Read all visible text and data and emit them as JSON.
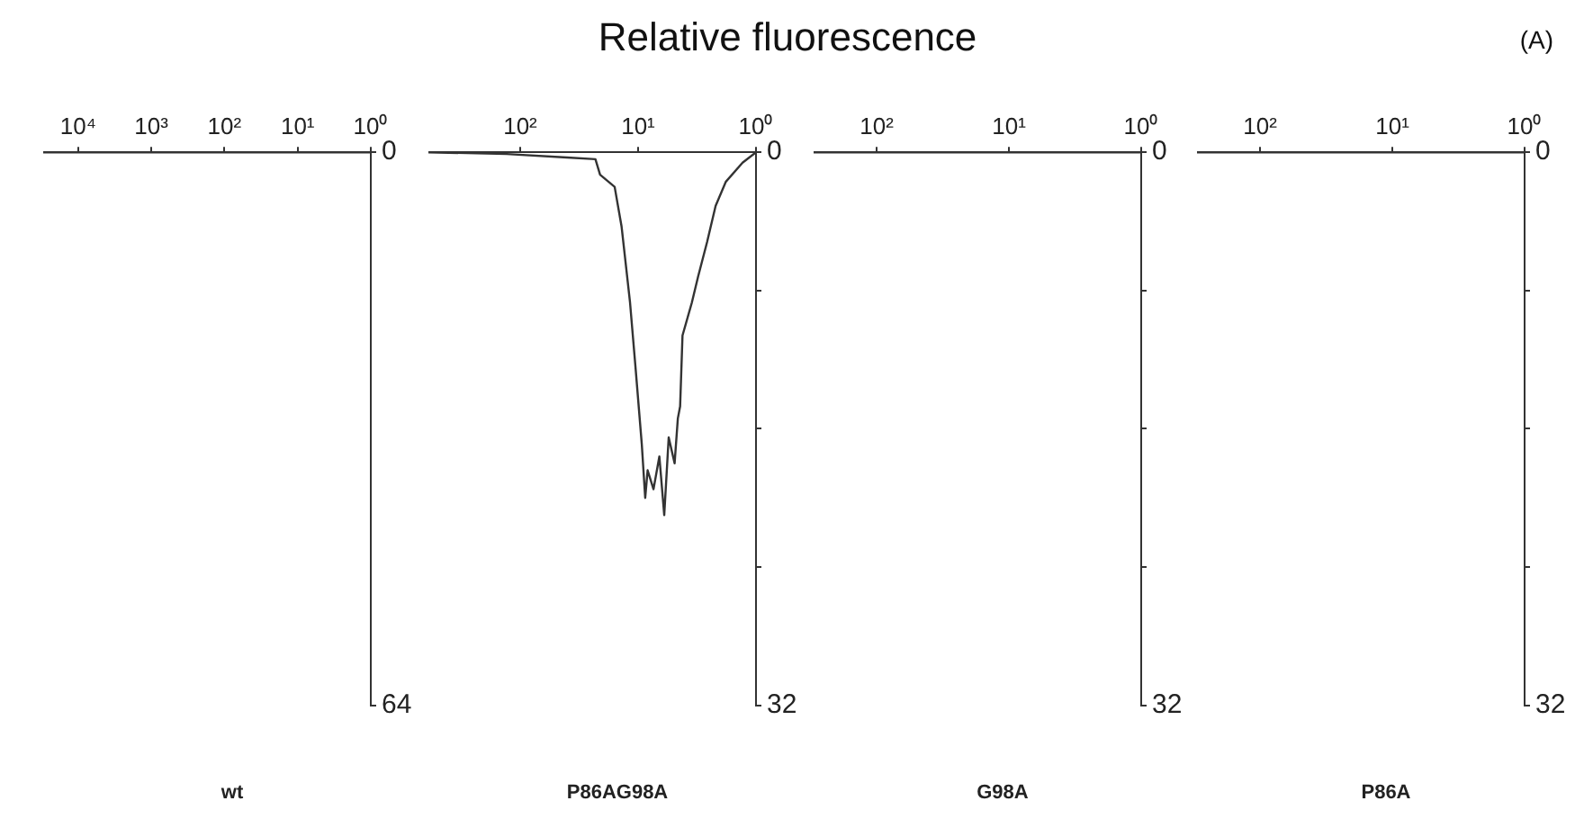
{
  "chart_data": [
    {
      "type": "line",
      "title": "P86A",
      "x": [
        1,
        3,
        10,
        30,
        100,
        300
      ],
      "values": [
        0,
        0,
        0,
        0,
        0,
        0
      ],
      "color": "#333333",
      "xlim": [
        300,
        1
      ],
      "xticks": [
        {
          "value": 1,
          "label": "10⁰"
        },
        {
          "value": 10,
          "label": "10¹"
        },
        {
          "value": 100,
          "label": "10²"
        }
      ],
      "ylim": [
        32,
        0
      ],
      "yticks": [
        0,
        {
          "value": 8,
          "label": null
        },
        {
          "value": 16,
          "label": null
        },
        {
          "value": 24,
          "label": null
        },
        32
      ],
      "log": "x",
      "grid": false,
      "legend": false,
      "marker": "none",
      "annotations": [
        "(A)",
        "Relative fluorescence"
      ]
    },
    {
      "type": "line",
      "title": "G98A",
      "x": [
        1,
        3,
        10,
        30,
        100,
        300
      ],
      "values": [
        0,
        0,
        0,
        0,
        0,
        0
      ],
      "color": "#333333",
      "xlim": [
        300,
        1
      ],
      "xticks": [
        {
          "value": 1,
          "label": "10⁰"
        },
        {
          "value": 10,
          "label": "10¹"
        },
        {
          "value": 100,
          "label": "10²"
        }
      ],
      "ylim": [
        32,
        0
      ],
      "yticks": [
        0,
        {
          "value": 8,
          "label": null
        },
        {
          "value": 16,
          "label": null
        },
        {
          "value": 24,
          "label": null
        },
        32
      ],
      "log": "x",
      "grid": false,
      "legend": false,
      "marker": "none"
    },
    {
      "type": "line",
      "title": "P86AG98A",
      "x": [
        1,
        1.3,
        1.8,
        2.2,
        2.6,
        3.1,
        3.5,
        4.2,
        4.4,
        4.6,
        4.9,
        5.5,
        6,
        6.6,
        7.4,
        8.3,
        8.7,
        9.3,
        10.5,
        11.7,
        13.8,
        15.8,
        21,
        23,
        40,
        130,
        600
      ],
      "values": [
        0,
        0.6,
        1.7,
        3.1,
        5.2,
        7.2,
        8.7,
        10.6,
        14.7,
        15.4,
        18,
        16.5,
        21,
        17.6,
        19.5,
        18.4,
        20,
        16.9,
        12.5,
        8.7,
        4.3,
        2,
        1.3,
        0.4,
        0.3,
        0.1,
        0
      ],
      "color": "#333333",
      "xlim": [
        600,
        1
      ],
      "xticks": [
        {
          "value": 1,
          "label": "10⁰"
        },
        {
          "value": 10,
          "label": "10¹"
        },
        {
          "value": 100,
          "label": "10²"
        }
      ],
      "ylim": [
        32,
        0
      ],
      "yticks": [
        0,
        {
          "value": 8,
          "label": null
        },
        {
          "value": 16,
          "label": null
        },
        {
          "value": 24,
          "label": null
        },
        32
      ],
      "log": "x",
      "grid": false,
      "legend": false,
      "marker": "none"
    },
    {
      "type": "line",
      "title": "wt",
      "x": [
        1,
        10,
        100,
        1000,
        10000,
        30000
      ],
      "values": [
        0,
        0,
        0,
        0,
        0,
        0
      ],
      "color": "#333333",
      "xlim": [
        30000,
        1
      ],
      "xticks": [
        {
          "value": 1,
          "label": "10⁰"
        },
        {
          "value": 10,
          "label": "10¹"
        },
        {
          "value": 100,
          "label": "10²"
        },
        {
          "value": 1000,
          "label": "10³"
        },
        {
          "value": 10000,
          "label": "10⁴"
        }
      ],
      "ylim": [
        64,
        0
      ],
      "yticks": [
        0,
        64
      ],
      "log": "x",
      "grid": false,
      "legend": false,
      "marker": "none"
    }
  ]
}
